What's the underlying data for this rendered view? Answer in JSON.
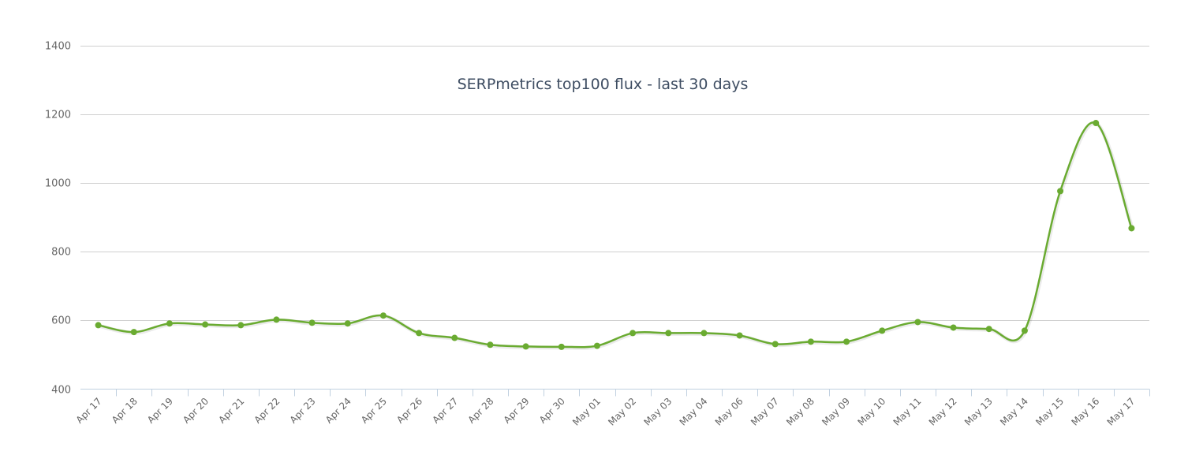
{
  "chart_data": {
    "type": "line",
    "title": "SERPmetrics top100 flux - last 30 days",
    "xlabel": "",
    "ylabel": "",
    "ylim": [
      400,
      1400
    ],
    "yticks": [
      400,
      600,
      800,
      1000,
      1200,
      1400
    ],
    "grid": true,
    "legend": "none",
    "categories": [
      "Apr 17",
      "Apr 18",
      "Apr 19",
      "Apr 20",
      "Apr 21",
      "Apr 22",
      "Apr 23",
      "Apr 24",
      "Apr 25",
      "Apr 26",
      "Apr 27",
      "Apr 28",
      "Apr 29",
      "Apr 30",
      "May 01",
      "May 02",
      "May 03",
      "May 04",
      "May 06",
      "May 07",
      "May 08",
      "May 09",
      "May 10",
      "May 11",
      "May 12",
      "May 13",
      "May 14",
      "May 15",
      "May 16",
      "May 17"
    ],
    "series": [
      {
        "name": "flux",
        "color": "#6aab31",
        "values": [
          586,
          566,
          591,
          588,
          586,
          602,
          593,
          591,
          614,
          563,
          549,
          529,
          524,
          523,
          526,
          563,
          563,
          563,
          556,
          531,
          538,
          538,
          570,
          595,
          579,
          575,
          570,
          976,
          1174,
          868
        ]
      }
    ]
  }
}
